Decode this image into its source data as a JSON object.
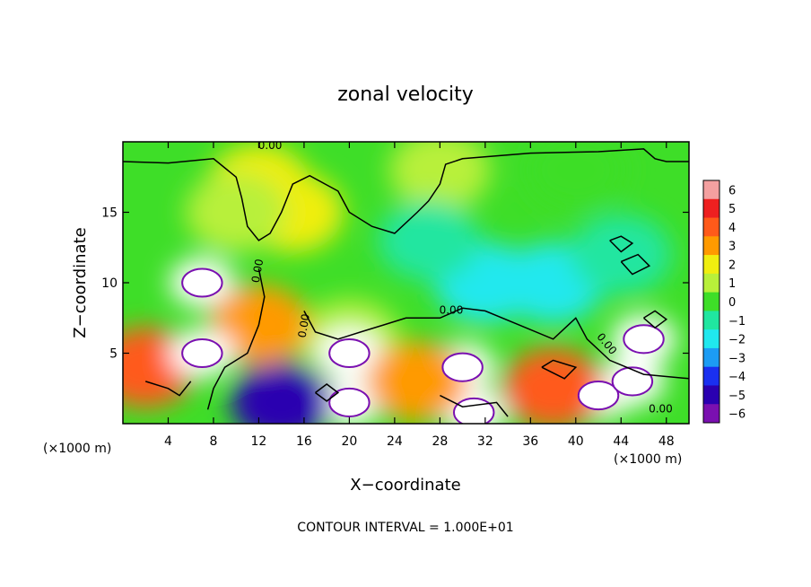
{
  "chart_data": {
    "type": "heatmap",
    "title": "zonal velocity",
    "xlabel": "X−coordinate",
    "ylabel": "Z−coordinate",
    "x_unit_left": "(×1000 m)",
    "x_unit_right": "(×1000 m)",
    "xlim": [
      0,
      50
    ],
    "ylim": [
      0,
      20
    ],
    "x_ticks": [
      4,
      8,
      12,
      16,
      20,
      24,
      28,
      32,
      36,
      40,
      44,
      48
    ],
    "y_ticks": [
      5,
      10,
      15
    ],
    "colorbar": {
      "levels": [
        6,
        5,
        4,
        3,
        2,
        1,
        0,
        -1,
        -2,
        -3,
        -4,
        -5,
        -6
      ],
      "labels": [
        "6",
        "5",
        "4",
        "3",
        "2",
        "1",
        "0",
        "−1",
        "−2",
        "−3",
        "−4",
        "−5",
        "−6"
      ],
      "colors": [
        "#f4a0a0",
        "#ee2020",
        "#ff5a1a",
        "#ff9a00",
        "#f0ee10",
        "#b8f03a",
        "#3ede28",
        "#20e6a0",
        "#20e8ee",
        "#1c9cf4",
        "#1a30f0",
        "#2a00b0",
        "#7a10b0"
      ],
      "saturation_color": "#ffffff"
    },
    "contour_label": "0.00",
    "contour_interval_text": "CONTOUR INTERVAL = 1.000E+01",
    "field_features": [
      {
        "kind": "background",
        "value": 0
      },
      {
        "x": 12,
        "y": 17,
        "value": 1.5
      },
      {
        "x": 15,
        "y": 15,
        "value": 1.8
      },
      {
        "x": 10,
        "y": 15,
        "value": 1.2
      },
      {
        "x": 28,
        "y": 18,
        "value": 0.6
      },
      {
        "x": 40,
        "y": 18,
        "value": -0.3
      },
      {
        "x": 20,
        "y": 6,
        "value": 1.2
      },
      {
        "x": 32,
        "y": 10,
        "value": -1.6
      },
      {
        "x": 27,
        "y": 13,
        "value": -1.2
      },
      {
        "x": 38,
        "y": 10,
        "value": -1.8
      },
      {
        "x": 44,
        "y": 12,
        "value": -1.5
      },
      {
        "x": 7,
        "y": 10,
        "value": -9
      },
      {
        "x": 20,
        "y": 5,
        "value": -8
      },
      {
        "x": 30,
        "y": 4,
        "value": -7
      },
      {
        "x": 42,
        "y": 2,
        "value": -8
      },
      {
        "x": 12,
        "y": 7,
        "value": 3
      },
      {
        "x": 2,
        "y": 4,
        "value": 4
      },
      {
        "x": 7,
        "y": 5,
        "value": 8
      },
      {
        "x": 20,
        "y": 1.5,
        "value": 10
      },
      {
        "x": 31,
        "y": 0.8,
        "value": 9
      },
      {
        "x": 45,
        "y": 3,
        "value": 9
      },
      {
        "x": 38,
        "y": 2.5,
        "value": 4
      },
      {
        "x": 26,
        "y": 3,
        "value": 3
      },
      {
        "x": 14,
        "y": 1.5,
        "value": -5
      },
      {
        "x": 46,
        "y": 6,
        "value": -7
      }
    ]
  }
}
